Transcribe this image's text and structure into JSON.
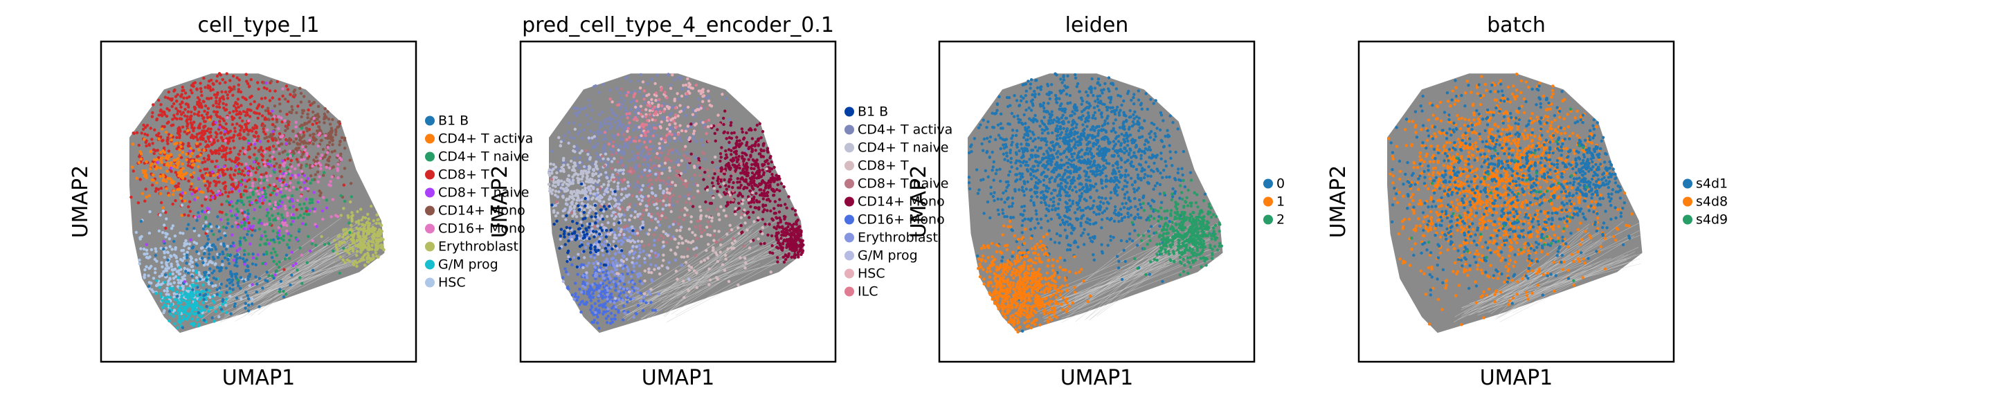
{
  "chart_data": [
    {
      "type": "scatter",
      "title": "cell_type_l1",
      "xlabel": "UMAP1",
      "ylabel": "UMAP2",
      "grid": false,
      "legend_position": "right",
      "legend": [
        {
          "label": "B1 B",
          "color": "#1f77b4"
        },
        {
          "label": "CD4+ T activa",
          "color": "#ff7f0e"
        },
        {
          "label": "CD4+ T naive",
          "color": "#279e68"
        },
        {
          "label": "CD8+ T",
          "color": "#d62728"
        },
        {
          "label": "CD8+ T naive",
          "color": "#aa40fc"
        },
        {
          "label": "CD14+ Mono",
          "color": "#8c564b"
        },
        {
          "label": "CD16+ Mono",
          "color": "#e377c2"
        },
        {
          "label": "Erythroblast",
          "color": "#b5bd61"
        },
        {
          "label": "G/M prog",
          "color": "#17becf"
        },
        {
          "label": "HSC",
          "color": "#aec7e8"
        }
      ]
    },
    {
      "type": "scatter",
      "title": "pred_cell_type_4_encoder_0.1",
      "xlabel": "UMAP1",
      "ylabel": "UMAP2",
      "grid": false,
      "legend_position": "right",
      "legend": [
        {
          "label": "B1 B",
          "color": "#023fa5"
        },
        {
          "label": "CD4+ T activa",
          "color": "#7d87b9"
        },
        {
          "label": "CD4+ T naive",
          "color": "#bec1d4"
        },
        {
          "label": "CD8+ T",
          "color": "#d6bcc0"
        },
        {
          "label": "CD8+ T naive",
          "color": "#bb7784"
        },
        {
          "label": "CD14+ Mono",
          "color": "#8e063b"
        },
        {
          "label": "CD16+ Mono",
          "color": "#4a6fe3"
        },
        {
          "label": "Erythroblast",
          "color": "#8595e1"
        },
        {
          "label": "G/M prog",
          "color": "#b5bbe3"
        },
        {
          "label": "HSC",
          "color": "#e6afb9"
        },
        {
          "label": "ILC",
          "color": "#e07b91"
        }
      ]
    },
    {
      "type": "scatter",
      "title": "leiden",
      "xlabel": "UMAP1",
      "ylabel": "UMAP2",
      "grid": false,
      "legend_position": "right",
      "legend": [
        {
          "label": "0",
          "color": "#1f77b4"
        },
        {
          "label": "1",
          "color": "#ff7f0e"
        },
        {
          "label": "2",
          "color": "#279e68"
        }
      ]
    },
    {
      "type": "scatter",
      "title": "batch",
      "xlabel": "UMAP1",
      "ylabel": "UMAP2",
      "grid": false,
      "legend_position": "right",
      "legend": [
        {
          "label": "s4d1",
          "color": "#1f77b4"
        },
        {
          "label": "s4d8",
          "color": "#ff7f0e"
        },
        {
          "label": "s4d9",
          "color": "#279e68"
        }
      ]
    }
  ]
}
